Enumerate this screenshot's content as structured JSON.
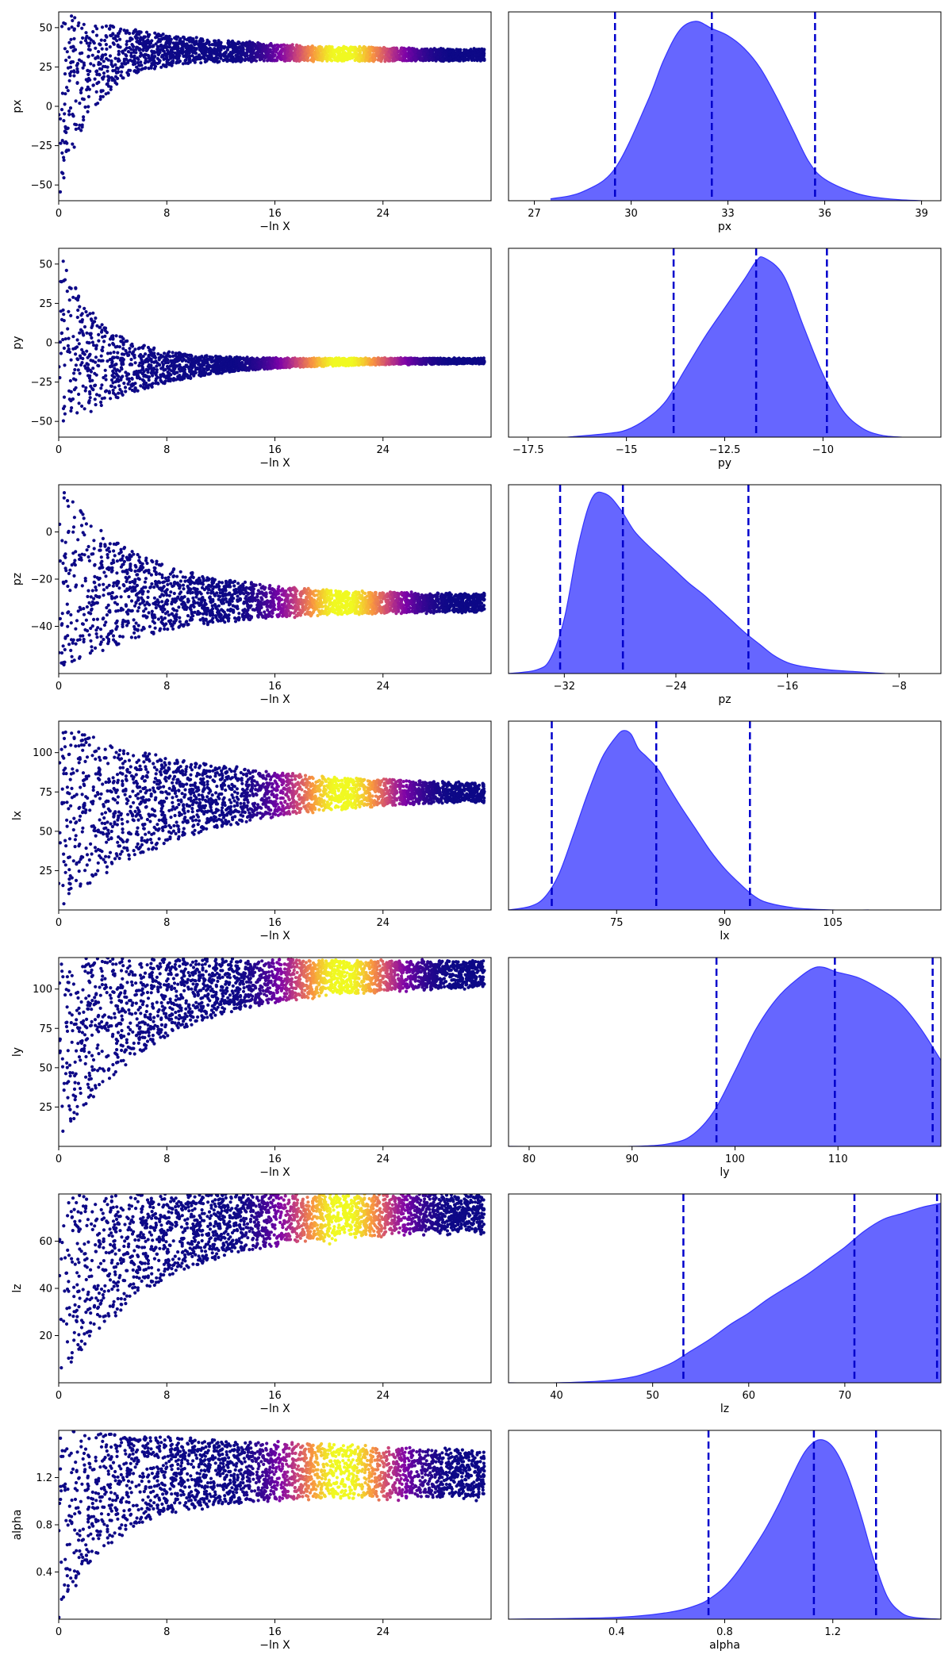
{
  "colors": {
    "posterior_fill": "#6666ff",
    "posterior_line": "#3333ff",
    "quantile_line": "#0000cc",
    "scatter_low": "#0d0887",
    "scatter_mid": "#cc4778",
    "scatter_high": "#f0f921"
  },
  "chart_data": {
    "type": "trace-plot",
    "trace_xlabel": "−ln X",
    "trace_xticks": [
      0,
      8,
      16,
      24
    ],
    "trace_xlim": [
      0,
      32
    ],
    "rows": [
      {
        "param": "px",
        "trace": {
          "ylim": [
            -60,
            60
          ],
          "yticks": [
            -50,
            -25,
            0,
            25,
            50
          ],
          "ylabel": "px",
          "converged_value": 32.2,
          "converged_spread": 3.2,
          "initial_low": -60,
          "initial_high": 60,
          "low_decay": 2.5,
          "high_decay": 9,
          "peak_x": 21,
          "color_width": 4,
          "x_end": 31.5
        },
        "posterior": {
          "xlabel": "px",
          "xlim": [
            26.2,
            39.6
          ],
          "xticks": [
            27,
            30,
            33,
            36,
            39
          ],
          "quantiles": [
            29.5,
            32.5,
            35.7
          ],
          "density": {
            "x": [
              27.5,
              28.5,
              29.5,
              30.5,
              31.0,
              31.5,
              32.0,
              32.5,
              33.0,
              33.5,
              34.0,
              34.5,
              35.0,
              35.5,
              36.0,
              37.0,
              38.0,
              39.0
            ],
            "y": [
              0.01,
              0.05,
              0.18,
              0.55,
              0.78,
              0.95,
              1.0,
              0.96,
              0.92,
              0.85,
              0.74,
              0.58,
              0.4,
              0.22,
              0.12,
              0.04,
              0.01,
              0.0
            ]
          }
        }
      },
      {
        "param": "py",
        "trace": {
          "ylim": [
            -60,
            60
          ],
          "yticks": [
            -50,
            -25,
            0,
            25,
            50
          ],
          "ylabel": "py",
          "converged_value": -11.5,
          "converged_spread": 1.6,
          "initial_low": -60,
          "initial_high": 60,
          "low_decay": 6,
          "high_decay": 3,
          "peak_x": 21,
          "color_width": 4,
          "x_end": 31.5
        },
        "posterior": {
          "xlabel": "py",
          "xlim": [
            -18.0,
            -7.0
          ],
          "xticks": [
            -17.5,
            -15.0,
            -12.5,
            -10.0
          ],
          "quantiles": [
            -13.8,
            -11.7,
            -9.9
          ],
          "density": {
            "x": [
              -16.5,
              -15.5,
              -15.0,
              -14.5,
              -14.0,
              -13.5,
              -13.0,
              -12.5,
              -12.0,
              -11.7,
              -11.5,
              -11.0,
              -10.5,
              -10.0,
              -9.5,
              -9.0,
              -8.5,
              -8.0
            ],
            "y": [
              0.0,
              0.02,
              0.04,
              0.1,
              0.2,
              0.38,
              0.56,
              0.72,
              0.88,
              0.98,
              1.0,
              0.9,
              0.62,
              0.35,
              0.15,
              0.05,
              0.01,
              0.0
            ]
          }
        }
      },
      {
        "param": "pz",
        "trace": {
          "ylim": [
            -60,
            20
          ],
          "yticks": [
            -40,
            -20,
            0
          ],
          "ylabel": "pz",
          "converged_value": -30.0,
          "converged_spread": 3.5,
          "initial_low": -60,
          "initial_high": 20,
          "low_decay": 7,
          "high_decay": 6,
          "peak_x": 21,
          "color_width": 4,
          "x_end": 31.5
        },
        "posterior": {
          "xlabel": "pz",
          "xlim": [
            -36.0,
            -5.0
          ],
          "xticks": [
            -32,
            -24,
            -16,
            -8
          ],
          "quantiles": [
            -32.3,
            -27.8,
            -18.8
          ],
          "density": {
            "x": [
              -36.0,
              -34.0,
              -33.0,
              -32.0,
              -31.0,
              -30.0,
              -29.0,
              -28.0,
              -27.0,
              -26.0,
              -25.0,
              -24.0,
              -23.0,
              -22.0,
              -21.0,
              -20.0,
              -19.0,
              -18.0,
              -17.0,
              -16.0,
              -15.0,
              -13.0,
              -11.0,
              -9.0
            ],
            "y": [
              0.0,
              0.02,
              0.08,
              0.3,
              0.7,
              0.96,
              0.98,
              0.9,
              0.78,
              0.7,
              0.63,
              0.56,
              0.49,
              0.43,
              0.36,
              0.29,
              0.22,
              0.16,
              0.1,
              0.06,
              0.04,
              0.02,
              0.01,
              0.0
            ]
          }
        }
      },
      {
        "param": "lx",
        "trace": {
          "ylim": [
            0,
            120
          ],
          "yticks": [
            25,
            50,
            75,
            100
          ],
          "ylabel": "lx",
          "converged_value": 75.0,
          "converged_spread": 4,
          "initial_low": 0,
          "initial_high": 120,
          "low_decay": 9,
          "high_decay": 10,
          "peak_x": 21,
          "color_width": 4,
          "x_end": 31.5
        },
        "posterior": {
          "xlabel": "lx",
          "xlim": [
            60.0,
            120.0
          ],
          "xticks": [
            75,
            90,
            105
          ],
          "quantiles": [
            66.0,
            80.5,
            93.5
          ],
          "density": {
            "x": [
              60.0,
              63.0,
              65.0,
              67.0,
              69.0,
              71.0,
              73.0,
              75.0,
              76.0,
              77.0,
              78.0,
              79.0,
              80.0,
              81.0,
              82.0,
              84.0,
              86.0,
              88.0,
              90.0,
              92.0,
              94.0,
              96.0,
              100.0,
              105.0,
              110.0
            ],
            "y": [
              0.0,
              0.02,
              0.07,
              0.2,
              0.42,
              0.65,
              0.85,
              0.97,
              1.0,
              0.98,
              0.9,
              0.86,
              0.82,
              0.77,
              0.7,
              0.57,
              0.45,
              0.33,
              0.23,
              0.15,
              0.08,
              0.04,
              0.01,
              0.0,
              0.0
            ]
          }
        }
      },
      {
        "param": "ly",
        "trace": {
          "ylim": [
            0,
            120
          ],
          "yticks": [
            25,
            50,
            75,
            100
          ],
          "ylabel": "ly",
          "converged_value": 108.0,
          "converged_spread": 6,
          "initial_low": 0,
          "initial_high": 120,
          "low_decay": 7,
          "high_decay": 50,
          "peak_x": 21,
          "color_width": 4,
          "x_end": 31.5
        },
        "posterior": {
          "xlabel": "ly",
          "xlim": [
            78.0,
            120.0
          ],
          "xticks": [
            80,
            90,
            100,
            110
          ],
          "quantiles": [
            98.2,
            109.7,
            119.2
          ],
          "density": {
            "x": [
              78.0,
              90.0,
              94.0,
              96.0,
              98.0,
              100.0,
              102.0,
              104.0,
              106.0,
              108.0,
              110.0,
              112.0,
              114.0,
              116.0,
              118.0,
              120.0
            ],
            "y": [
              0.0,
              0.0,
              0.02,
              0.07,
              0.2,
              0.42,
              0.65,
              0.82,
              0.93,
              1.0,
              0.97,
              0.94,
              0.88,
              0.8,
              0.66,
              0.48
            ]
          }
        }
      },
      {
        "param": "lz",
        "trace": {
          "ylim": [
            0,
            80
          ],
          "yticks": [
            20,
            40,
            60
          ],
          "ylabel": "lz",
          "converged_value": 72.0,
          "converged_spread": 7,
          "initial_low": 0,
          "initial_high": 80,
          "low_decay": 7,
          "high_decay": 50,
          "peak_x": 21,
          "color_width": 4,
          "x_end": 31.5
        },
        "posterior": {
          "xlabel": "lz",
          "xlim": [
            35.0,
            80.0
          ],
          "xticks": [
            40,
            50,
            60,
            70
          ],
          "quantiles": [
            53.2,
            71.0,
            79.6
          ],
          "density": {
            "x": [
              35.0,
              40.0,
              45.0,
              48.0,
              50.0,
              52.0,
              54.0,
              56.0,
              58.0,
              60.0,
              62.0,
              64.0,
              66.0,
              68.0,
              70.0,
              72.0,
              74.0,
              76.0,
              78.0,
              80.0
            ],
            "y": [
              0.0,
              0.0,
              0.01,
              0.03,
              0.06,
              0.1,
              0.16,
              0.22,
              0.29,
              0.35,
              0.42,
              0.48,
              0.54,
              0.61,
              0.68,
              0.76,
              0.82,
              0.85,
              0.88,
              0.9
            ]
          }
        }
      },
      {
        "param": "alpha",
        "trace": {
          "ylim": [
            0,
            1.6
          ],
          "yticks": [
            0.4,
            0.8,
            1.2
          ],
          "ylabel": "alpha",
          "converged_value": 1.15,
          "converged_spread": 0.12,
          "initial_low": 0,
          "initial_high": 1.6,
          "low_decay": 4,
          "high_decay": 40,
          "peak_x": 21,
          "color_width": 4,
          "x_end": 31.5
        },
        "posterior": {
          "xlabel": "alpha",
          "xlim": [
            0.0,
            1.6
          ],
          "xticks": [
            0.4,
            0.8,
            1.2
          ],
          "quantiles": [
            0.74,
            1.13,
            1.36
          ],
          "density": {
            "x": [
              0.0,
              0.4,
              0.6,
              0.7,
              0.75,
              0.8,
              0.85,
              0.9,
              0.95,
              1.0,
              1.05,
              1.1,
              1.15,
              1.2,
              1.25,
              1.3,
              1.35,
              1.4,
              1.45,
              1.5,
              1.6
            ],
            "y": [
              0.0,
              0.01,
              0.04,
              0.08,
              0.12,
              0.18,
              0.27,
              0.38,
              0.5,
              0.64,
              0.8,
              0.94,
              1.0,
              0.96,
              0.82,
              0.6,
              0.34,
              0.13,
              0.04,
              0.01,
              0.0
            ]
          }
        }
      }
    ]
  }
}
